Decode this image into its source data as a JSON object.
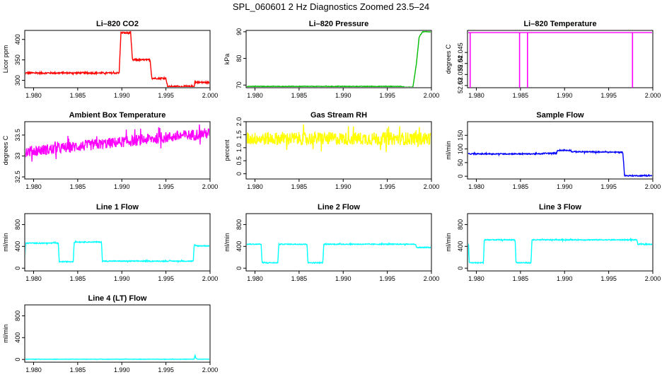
{
  "title": "SPL_060601  2 Hz Diagnostics Zoomed 23.5–24",
  "chart_data": [
    {
      "type": "line",
      "title": "Li–820 CO2",
      "ylabel": "Licor ppm",
      "xlim": [
        1.979,
        2.0
      ],
      "ylim": [
        282,
        422
      ],
      "yticks": [
        300,
        350,
        400
      ],
      "color": "#ff0000",
      "noise": 2,
      "x": [
        1.979,
        1.9897,
        1.9899,
        1.991,
        1.9912,
        1.9932,
        1.9934,
        1.995,
        1.9952,
        1.9982,
        1.9983,
        1.9984,
        2.0
      ],
      "y": [
        318,
        318,
        416,
        416,
        350,
        350,
        305,
        305,
        285,
        285,
        298,
        295,
        295
      ]
    },
    {
      "type": "line",
      "title": "Li–820 Pressure",
      "ylabel": "kPa",
      "xlim": [
        1.979,
        2.0
      ],
      "ylim": [
        69,
        90.5
      ],
      "yticks": [
        70,
        80,
        90
      ],
      "color": "#00bb00",
      "noise": 0.1,
      "x": [
        1.979,
        1.9965,
        1.997,
        1.9979,
        1.9983,
        1.9986,
        1.999,
        2.0
      ],
      "y": [
        69.5,
        69.5,
        69.2,
        69.2,
        78,
        88,
        90,
        90
      ]
    },
    {
      "type": "line",
      "title": "Li–820 Temperature",
      "ylabel": "degrees C",
      "xlim": [
        1.979,
        2.0
      ],
      "ylim": [
        52.029,
        52.055
      ],
      "yticks": [
        52.03,
        52.035,
        52.04,
        52.045
      ],
      "color": "#ff00ff",
      "noise": 0,
      "x": [
        1.979,
        2.0
      ],
      "y": [
        52.054,
        52.054
      ],
      "spikes": [
        1.9793,
        1.9849,
        1.9858,
        1.9977
      ],
      "spike_to": 52.029
    },
    {
      "type": "line",
      "title": "Ambient Box Temperature",
      "ylabel": "degrees C",
      "xlim": [
        1.979,
        2.0
      ],
      "ylim": [
        32.45,
        33.82
      ],
      "yticks": [
        32.5,
        33.0,
        33.5
      ],
      "color": "#ff00ff",
      "noise": 0.13,
      "x": [
        1.979,
        2.0
      ],
      "y": [
        33.1,
        33.55
      ]
    },
    {
      "type": "line",
      "title": "Gas Stream RH",
      "ylabel": "percent",
      "xlim": [
        1.979,
        2.0
      ],
      "ylim": [
        -0.2,
        2.0
      ],
      "yticks": [
        0.0,
        0.5,
        1.0,
        1.5,
        2.0
      ],
      "color": "#ffff00",
      "noise": 0.25,
      "x": [
        1.979,
        2.0
      ],
      "y": [
        1.35,
        1.35
      ]
    },
    {
      "type": "line",
      "title": "Sample Flow",
      "ylabel": "ml/min",
      "xlim": [
        1.979,
        2.0
      ],
      "ylim": [
        -10,
        200
      ],
      "yticks": [
        0,
        50,
        100,
        150
      ],
      "color": "#0000ff",
      "noise": 2,
      "x": [
        1.979,
        1.9875,
        1.9876,
        1.9891,
        1.9892,
        1.9907,
        1.9908,
        1.9966,
        1.9968,
        2.0
      ],
      "y": [
        82,
        82,
        84,
        84,
        95,
        95,
        90,
        88,
        2,
        2
      ]
    },
    {
      "type": "line",
      "title": "Line 1 Flow",
      "ylabel": "ml/min",
      "xlim": [
        1.979,
        2.0
      ],
      "ylim": [
        -50,
        1000
      ],
      "yticks": [
        0,
        400,
        800
      ],
      "color": "#00ffff",
      "noise": 8,
      "x": [
        1.979,
        1.9791,
        1.9828,
        1.9829,
        1.9845,
        1.9846,
        1.9877,
        1.9878,
        1.9981,
        1.9982,
        1.9984,
        2.0
      ],
      "y": [
        120,
        460,
        460,
        120,
        120,
        480,
        480,
        130,
        130,
        420,
        410,
        410
      ]
    },
    {
      "type": "line",
      "title": "Line 2 Flow",
      "ylabel": "ml/min",
      "xlim": [
        1.979,
        2.0
      ],
      "ylim": [
        -50,
        1000
      ],
      "yticks": [
        0,
        400,
        800
      ],
      "color": "#00ffff",
      "noise": 8,
      "x": [
        1.979,
        1.9807,
        1.9808,
        1.9826,
        1.9827,
        1.9859,
        1.986,
        1.9877,
        1.9878,
        1.9982,
        1.9983,
        2.0
      ],
      "y": [
        440,
        440,
        100,
        100,
        440,
        440,
        100,
        100,
        440,
        440,
        380,
        380
      ]
    },
    {
      "type": "line",
      "title": "Line 3 Flow",
      "ylabel": "ml/min",
      "xlim": [
        1.979,
        2.0
      ],
      "ylim": [
        -50,
        1000
      ],
      "yticks": [
        0,
        400,
        800
      ],
      "color": "#00ffff",
      "noise": 8,
      "x": [
        1.979,
        1.9791,
        1.9792,
        1.9808,
        1.9809,
        1.9844,
        1.9845,
        1.9862,
        1.9863,
        1.9982,
        1.9983,
        2.0
      ],
      "y": [
        100,
        520,
        100,
        100,
        520,
        520,
        100,
        100,
        520,
        520,
        440,
        440
      ]
    },
    {
      "type": "line",
      "title": "Line 4 (LT) Flow",
      "ylabel": "ml/min",
      "xlim": [
        1.979,
        2.0
      ],
      "ylim": [
        -50,
        1000
      ],
      "yticks": [
        0,
        400,
        800
      ],
      "color": "#00ffff",
      "noise": 3,
      "x": [
        1.979,
        1.9982,
        1.9983,
        1.9984,
        1.9986,
        2.0
      ],
      "y": [
        5,
        5,
        80,
        20,
        5,
        5
      ]
    }
  ],
  "xtick_labels": [
    "1.980",
    "1.985",
    "1.990",
    "1.995",
    "2.000"
  ],
  "xtick_values": [
    1.98,
    1.985,
    1.99,
    1.995,
    2.0
  ]
}
